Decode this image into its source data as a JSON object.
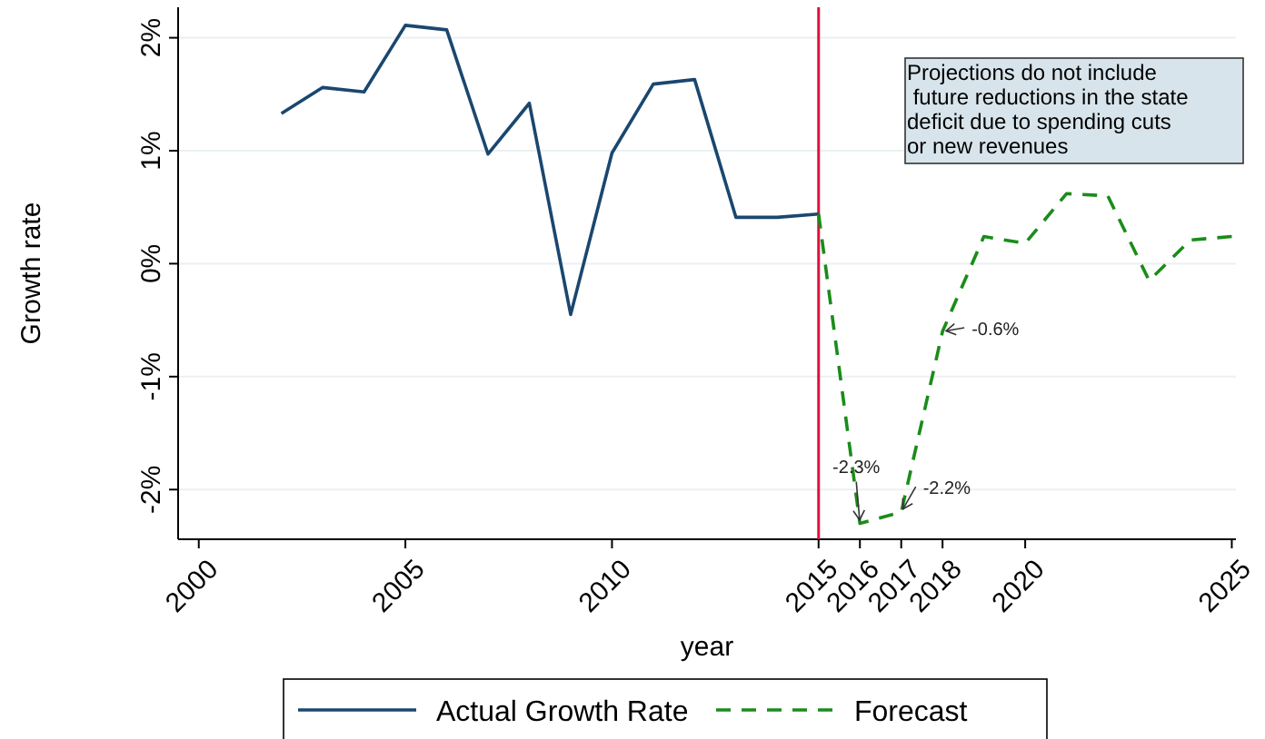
{
  "chart_data": {
    "type": "line",
    "xlabel": "year",
    "ylabel": "Growth rate",
    "xlim": [
      1999.5,
      2025.1
    ],
    "xticks": [
      2000,
      2005,
      2010,
      2015,
      2016,
      2017,
      2018,
      2020,
      2025
    ],
    "ylim": [
      -2.44,
      2.27
    ],
    "yticks": [
      {
        "value": -2,
        "label": "-2%"
      },
      {
        "value": -1,
        "label": "-1%"
      },
      {
        "value": 0,
        "label": "0%"
      },
      {
        "value": 1,
        "label": "1%"
      },
      {
        "value": 2,
        "label": "2%"
      }
    ],
    "grid": "y",
    "legend": "bottom",
    "marker": "none",
    "series": [
      {
        "name": "Actual Growth Rate",
        "color": "#1a476f",
        "line_style": "solid",
        "x": [
          2002,
          2003,
          2004,
          2005,
          2006,
          2007,
          2008,
          2009,
          2010,
          2011,
          2012,
          2013,
          2014,
          2015
        ],
        "values": [
          1.33,
          1.56,
          1.52,
          2.11,
          2.07,
          0.97,
          1.42,
          -0.45,
          0.98,
          1.59,
          1.63,
          0.41,
          0.41,
          0.44
        ]
      },
      {
        "name": "Forecast",
        "color": "#1a8c1a",
        "line_style": "dashed",
        "x": [
          2015,
          2016,
          2017,
          2018,
          2019,
          2020,
          2021,
          2022,
          2023,
          2024,
          2025
        ],
        "values": [
          0.44,
          -2.3,
          -2.2,
          -0.6,
          0.24,
          0.18,
          0.62,
          0.6,
          -0.15,
          0.21,
          0.24
        ]
      }
    ],
    "ref_lines": [
      {
        "axis": "x",
        "value": 2015,
        "color": "#e0103a"
      }
    ],
    "annotations": [
      {
        "text": "-2.3%",
        "x": 2016,
        "y": -2.3
      },
      {
        "text": "-2.2%",
        "x": 2017,
        "y": -2.2
      },
      {
        "text": "-0.6%",
        "x": 2018,
        "y": -0.6
      },
      "Projections do not include\n future reductions in the state\ndeficit due to spending cuts\nor new revenues"
    ]
  }
}
